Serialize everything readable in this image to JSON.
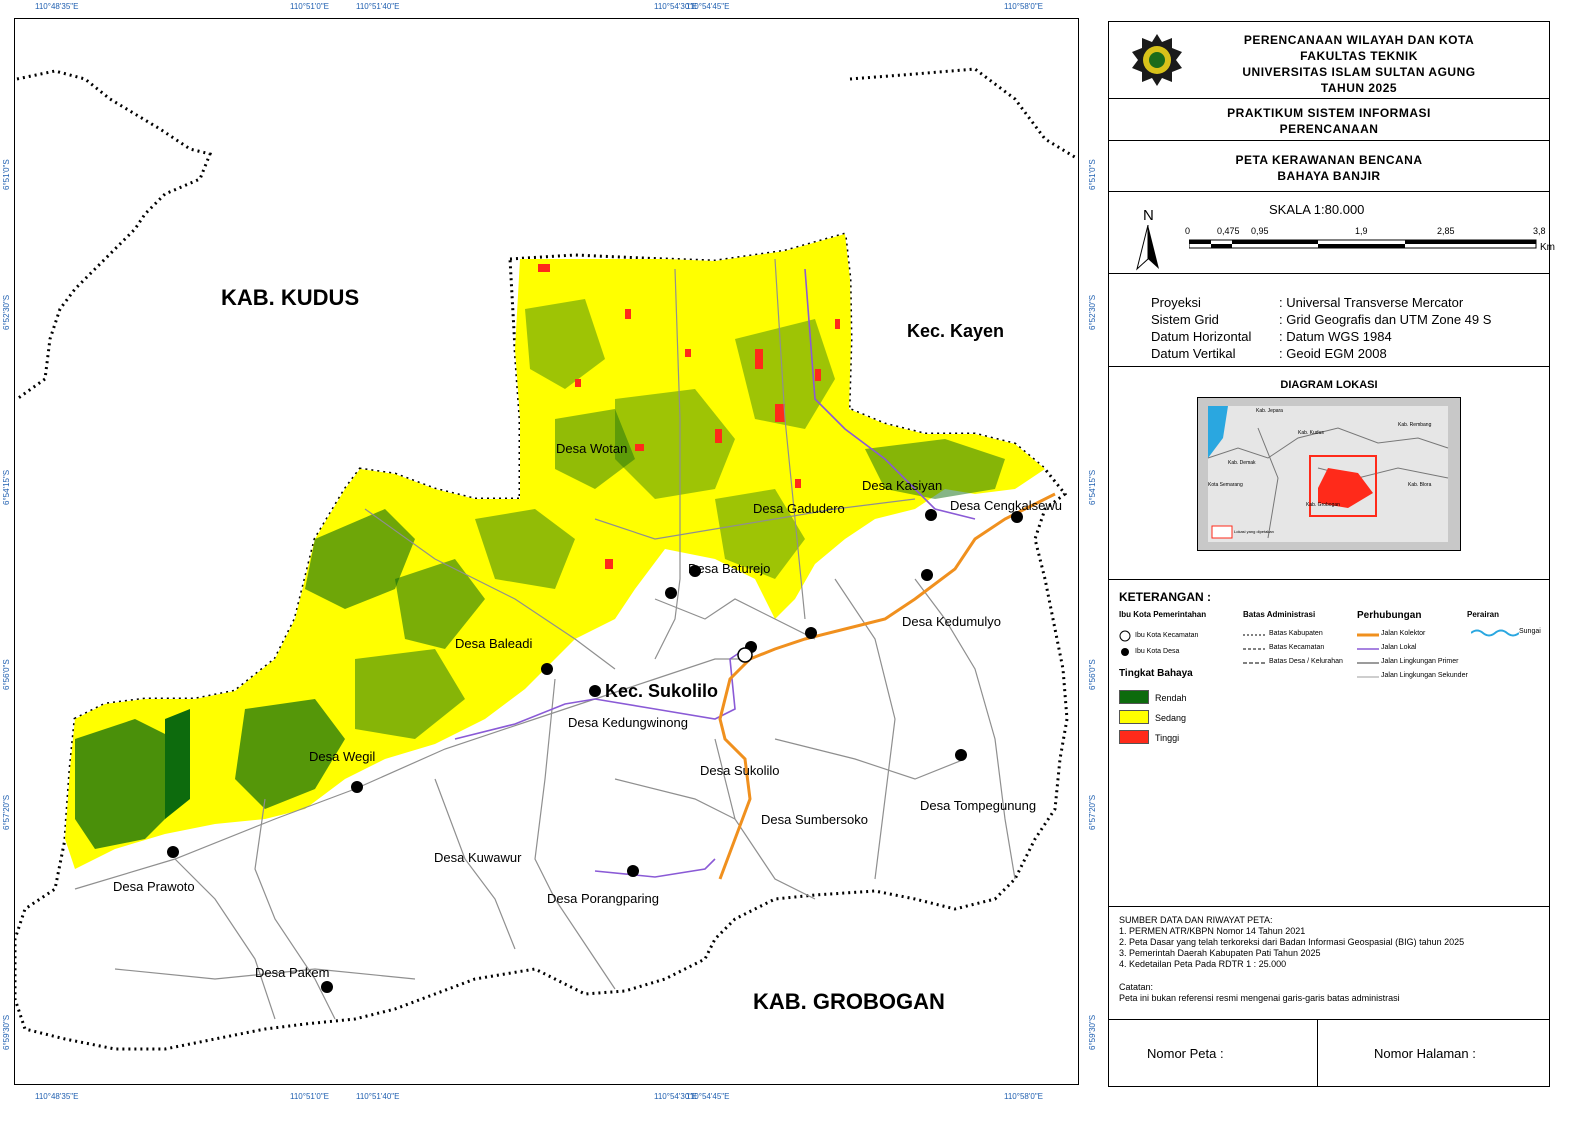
{
  "grid": {
    "top_labels": [
      "110°48'35\"E",
      "110°51'0\"E",
      "110°51'40\"E",
      "110°54'30\"E",
      "110°54'45\"E",
      "110°58'0\"E"
    ],
    "bottom_labels": [
      "110°48'35\"E",
      "110°51'0\"E",
      "110°51'40\"E",
      "110°54'30\"E",
      "110°54'45\"E",
      "110°58'0\"E"
    ],
    "left_labels": [
      "6°51'0\"S",
      "6°52'30\"S",
      "6°54'15\"S",
      "6°56'0\"S",
      "6°57'20\"S",
      "6°59'30\"S"
    ],
    "right_labels": [
      "6°51'0\"S",
      "6°52'30\"S",
      "6°54'15\"S",
      "6°56'0\"S",
      "6°57'20\"S",
      "6°59'30\"S"
    ]
  },
  "map": {
    "region_labels": {
      "kudus": "KAB. KUDUS",
      "kayen": "Kec. Kayen",
      "grobogan": "KAB. GROBOGAN",
      "sukolilo_kec": "Kec. Sukolilo"
    },
    "villages": [
      "Desa Wotan",
      "Desa Kasiyan",
      "Desa Cengkalsewu",
      "Desa Gadudero",
      "Desa Baturejo",
      "Desa Kedumulyo",
      "Desa Baleadi",
      "Desa Kedungwinong",
      "Desa Wegil",
      "Desa Sukolilo",
      "Desa Tompegunung",
      "Desa Sumbersoko",
      "Desa Kuwawur",
      "Desa Prawoto",
      "Desa Porangparing",
      "Desa Pakem"
    ]
  },
  "panel": {
    "header": {
      "line1": "PERENCANAAN WILAYAH DAN KOTA",
      "line2": "FAKULTAS TEKNIK",
      "line3": "UNIVERSITAS ISLAM SULTAN AGUNG",
      "line4": "TAHUN 2025",
      "logo_text": "UNISSULA"
    },
    "course": {
      "line1": "PRAKTIKUM SISTEM INFORMASI",
      "line2": "PERENCANAAN"
    },
    "title": {
      "line1": "PETA KERAWANAN BENCANA",
      "line2": "BAHAYA BANJIR"
    },
    "north": "N",
    "scale": {
      "label": "SKALA 1:80.000",
      "ticks": [
        "0",
        "0,475",
        "0,95",
        "1,9",
        "2,85",
        "3,8"
      ],
      "unit": "Km"
    },
    "projection": [
      {
        "key": "Proyeksi",
        "value": ": Universal Transverse Mercator"
      },
      {
        "key": "Sistem Grid",
        "value": ": Grid Geografis dan UTM Zone 49 S"
      },
      {
        "key": "Datum Horizontal",
        "value": ": Datum WGS 1984"
      },
      {
        "key": "Datum Vertikal",
        "value": ": Geoid EGM 2008"
      }
    ],
    "location_diagram": {
      "title": "DIAGRAM LOKASI",
      "labels": [
        "Kab. Jepara",
        "Kab. Kudus",
        "Kab. Demak",
        "Kota Semarang",
        "Kab. Grobogan",
        "Kab. Blora",
        "Kab. Rembang"
      ],
      "inset_legend": "Lokasi yang dipetakan"
    },
    "legend": {
      "title": "KETERANGAN :",
      "capital_title": "Ibu Kota Pemerintahan",
      "capital_items": [
        "Ibu Kota Kecamatan",
        "Ibu Kota Desa"
      ],
      "admin_title": "Batas Administrasi",
      "admin_items": [
        "Batas Kabupaten",
        "Batas Kecamatan",
        "Batas Desa / Kelurahan"
      ],
      "transport_title": "Perhubungan",
      "transport_items": [
        "Jalan Kolektor",
        "Jalan Lokal",
        "Jalan Lingkungan Primer",
        "Jalan Lingkungan Sekunder"
      ],
      "water_title": "Perairan",
      "water_items": [
        "Sungai"
      ],
      "hazard_title": "Tingkat Bahaya",
      "hazard_items": [
        {
          "label": "Rendah",
          "color": "#0d6b0d"
        },
        {
          "label": "Sedang",
          "color": "#ffff00"
        },
        {
          "label": "Tinggi",
          "color": "#ff2a1a"
        }
      ]
    },
    "sources": {
      "title": "SUMBER DATA DAN RIWAYAT PETA:",
      "items": [
        "1. PERMEN ATR/KBPN Nomor 14 Tahun 2021",
        "2. Peta Dasar yang telah terkoreksi dari Badan Informasi Geospasial (BIG) tahun 2025",
        "3. Pemerintah Daerah Kabupaten Pati Tahun 2025",
        "4. Kedetailan Peta Pada RDTR 1 : 25.000"
      ],
      "note_title": "Catatan:",
      "note": "Peta ini bukan referensi resmi mengenai garis-garis batas administrasi"
    },
    "footer": {
      "map_no": "Nomor Peta :",
      "page_no": "Nomor Halaman :"
    }
  },
  "colors": {
    "sedang": "#ffff00",
    "rendah": "#0d6b0d",
    "tinggi": "#ff2a1a",
    "kolektor": "#f0901e",
    "lokal": "#8a5ad6",
    "sungai": "#2aa7e0",
    "grid_label": "#1f5fb0"
  }
}
